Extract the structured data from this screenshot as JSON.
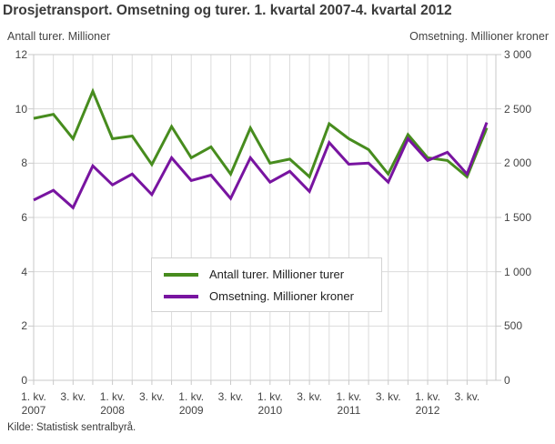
{
  "title": "Drosjetransport. Omsetning og turer. 1. kvartal 2007-4. kvartal 2012",
  "source": "Kilde: Statistisk sentralbyrå.",
  "colors": {
    "trips_line": "#478C1E",
    "revenue_line": "#7814A0",
    "grid": "#dcdcdc",
    "frame": "#c9c9c9",
    "text": "#444444",
    "title_text": "#3a3a3a"
  },
  "chart_data": {
    "type": "line",
    "title": "Drosjetransport. Omsetning og turer. 1. kvartal 2007-4. kvartal 2012",
    "grid": true,
    "legend_position": "center-bottom",
    "left_axis": {
      "label": "Antall turer. Millioner",
      "ticks": [
        12,
        10,
        8,
        6,
        4,
        2,
        0
      ],
      "range": [
        0,
        12
      ]
    },
    "right_axis": {
      "label": "Omsetning. Millioner kroner",
      "ticks": [
        "3 000",
        "2 500",
        "2 000",
        "1 500",
        "1 000",
        "500",
        "0"
      ],
      "range": [
        0,
        3000
      ]
    },
    "x_labels": [
      [
        "1. kv.",
        "2007"
      ],
      [
        "3. kv.",
        ""
      ],
      [
        "1. kv.",
        "2008"
      ],
      [
        "3. kv.",
        ""
      ],
      [
        "1. kv.",
        "2009"
      ],
      [
        "3. kv.",
        ""
      ],
      [
        "1. kv.",
        "2010"
      ],
      [
        "3. kv.",
        ""
      ],
      [
        "1. kv.",
        "2011"
      ],
      [
        "3. kv.",
        ""
      ],
      [
        "1. kv.",
        "2012"
      ],
      [
        "3. kv.",
        ""
      ]
    ],
    "categories": [
      "1. kv. 2007",
      "2. kv. 2007",
      "3. kv. 2007",
      "4. kv. 2007",
      "1. kv. 2008",
      "2. kv. 2008",
      "3. kv. 2008",
      "4. kv. 2008",
      "1. kv. 2009",
      "2. kv. 2009",
      "3. kv. 2009",
      "4. kv. 2009",
      "1. kv. 2010",
      "2. kv. 2010",
      "3. kv. 2010",
      "4. kv. 2010",
      "1. kv. 2011",
      "2. kv. 2011",
      "3. kv. 2011",
      "4. kv. 2011",
      "1. kv. 2012",
      "2. kv. 2012",
      "3. kv. 2012",
      "4. kv. 2012"
    ],
    "series": [
      {
        "name": "Antall turer. Millioner turer",
        "axis": "left",
        "color": "#478C1E",
        "values": [
          9.65,
          9.8,
          8.9,
          10.65,
          8.9,
          9.0,
          7.95,
          9.35,
          8.2,
          8.6,
          7.6,
          9.3,
          8.0,
          8.15,
          7.5,
          9.45,
          8.9,
          8.5,
          7.6,
          9.05,
          8.2,
          8.1,
          7.5,
          9.3
        ]
      },
      {
        "name": "Omsetning. Millioner kroner",
        "axis": "right",
        "color": "#7814A0",
        "values": [
          1660,
          1750,
          1590,
          1975,
          1800,
          1900,
          1710,
          2050,
          1840,
          1890,
          1675,
          2050,
          1825,
          1925,
          1740,
          2190,
          1990,
          2000,
          1825,
          2225,
          2025,
          2100,
          1900,
          2375
        ]
      }
    ]
  }
}
